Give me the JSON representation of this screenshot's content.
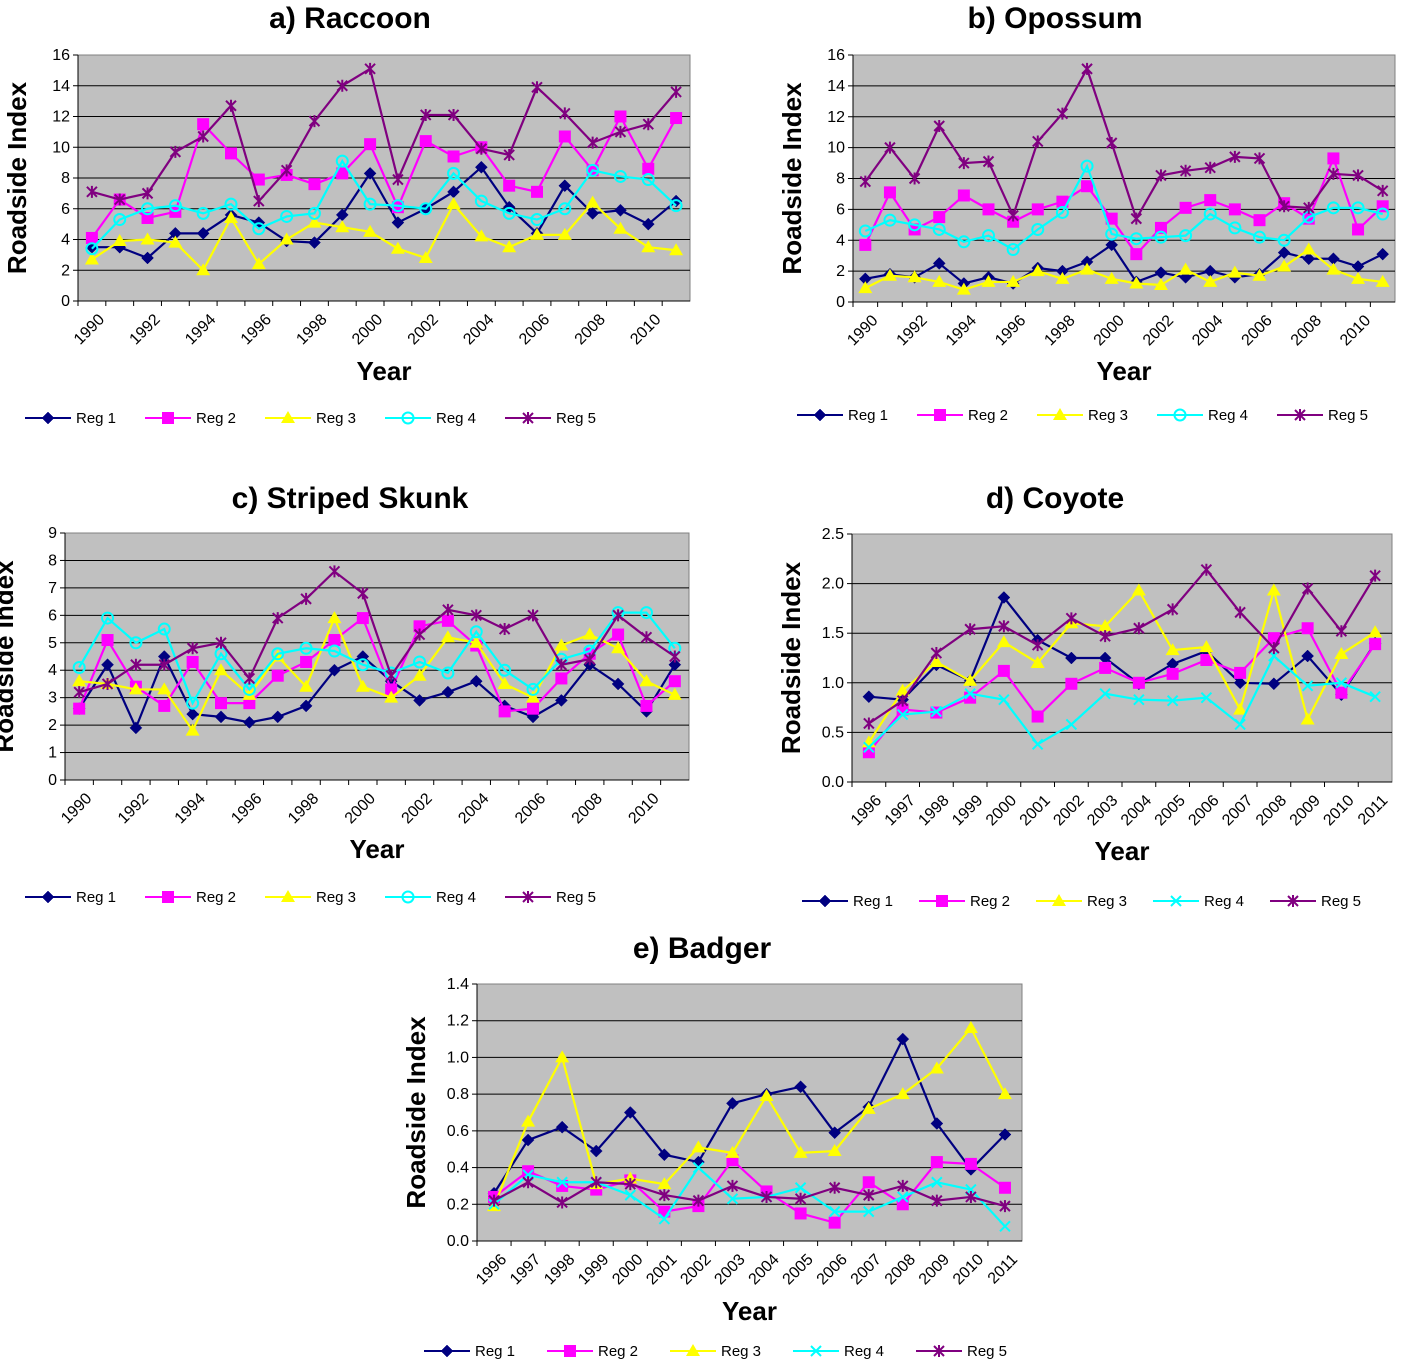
{
  "series_names": [
    "Reg 1",
    "Reg 2",
    "Reg 3",
    "Reg 4",
    "Reg 5"
  ],
  "series_colors": [
    "#000080",
    "#FF00FF",
    "#FFFF00",
    "#00FFFF",
    "#800080"
  ],
  "series_markers": [
    "diamond",
    "square",
    "triangle",
    "circle-or-x",
    "star"
  ],
  "plot_background": "#C0C0C0",
  "chart_data": [
    {
      "type": "line",
      "title": "a) Raccoon",
      "xlabel": "Year",
      "ylabel": "Roadside Index",
      "x": [
        1990,
        1991,
        1992,
        1993,
        1994,
        1995,
        1996,
        1997,
        1998,
        1999,
        2000,
        2001,
        2002,
        2003,
        2004,
        2005,
        2006,
        2007,
        2008,
        2009,
        2010,
        2011
      ],
      "x_tick_labels": [
        "1990",
        "1992",
        "1994",
        "1996",
        "1998",
        "2000",
        "2002",
        "2004",
        "2006",
        "2008",
        "2010"
      ],
      "y_ticks": [
        0,
        2,
        4,
        6,
        8,
        10,
        12,
        14,
        16
      ],
      "ylim": [
        0,
        16
      ],
      "grid": true,
      "legend": "bottom",
      "series": [
        {
          "name": "Reg 1",
          "values": [
            3.5,
            3.5,
            2.8,
            4.4,
            4.4,
            5.6,
            5.1,
            3.9,
            3.8,
            5.6,
            8.3,
            5.1,
            6.0,
            7.1,
            8.7,
            6.1,
            4.4,
            7.5,
            5.7,
            5.9,
            5.0,
            6.5
          ]
        },
        {
          "name": "Reg 2",
          "values": [
            4.1,
            6.6,
            5.4,
            5.8,
            11.5,
            9.6,
            7.9,
            8.2,
            7.6,
            8.3,
            10.2,
            6.1,
            10.4,
            9.4,
            10.0,
            7.5,
            7.1,
            10.7,
            8.5,
            12.0,
            8.6,
            11.9
          ]
        },
        {
          "name": "Reg 3",
          "values": [
            2.7,
            3.9,
            4.0,
            3.8,
            2.0,
            5.4,
            2.4,
            4.0,
            5.1,
            4.8,
            4.5,
            3.4,
            2.8,
            6.3,
            4.2,
            3.5,
            4.3,
            4.3,
            6.4,
            4.7,
            3.5,
            3.3
          ]
        },
        {
          "name": "Reg 4",
          "values": [
            3.4,
            5.3,
            6.0,
            6.2,
            5.7,
            6.3,
            4.7,
            5.5,
            5.7,
            9.1,
            6.3,
            6.2,
            6.0,
            8.3,
            6.5,
            5.7,
            5.3,
            6.0,
            8.5,
            8.1,
            7.9,
            6.2
          ]
        },
        {
          "name": "Reg 5",
          "values": [
            7.1,
            6.6,
            7.0,
            9.7,
            10.7,
            12.7,
            6.5,
            8.5,
            11.7,
            14.0,
            15.1,
            7.9,
            12.1,
            12.1,
            9.9,
            9.5,
            13.9,
            12.2,
            10.3,
            11.0,
            11.5,
            13.6
          ]
        }
      ]
    },
    {
      "type": "line",
      "title": "b) Opossum",
      "xlabel": "Year",
      "ylabel": "Roadside Index",
      "x": [
        1990,
        1991,
        1992,
        1993,
        1994,
        1995,
        1996,
        1997,
        1998,
        1999,
        2000,
        2001,
        2002,
        2003,
        2004,
        2005,
        2006,
        2007,
        2008,
        2009,
        2010,
        2011
      ],
      "x_tick_labels": [
        "1990",
        "1992",
        "1994",
        "1996",
        "1998",
        "2000",
        "2002",
        "2004",
        "2006",
        "2008",
        "2010"
      ],
      "y_ticks": [
        0,
        2,
        4,
        6,
        8,
        10,
        12,
        14,
        16
      ],
      "ylim": [
        0,
        16
      ],
      "grid": true,
      "legend": "bottom",
      "series": [
        {
          "name": "Reg 1",
          "values": [
            1.5,
            1.8,
            1.6,
            2.5,
            1.2,
            1.6,
            1.2,
            2.2,
            2.0,
            2.6,
            3.7,
            1.3,
            1.9,
            1.6,
            2.0,
            1.6,
            1.8,
            3.2,
            2.8,
            2.8,
            2.3,
            3.1
          ]
        },
        {
          "name": "Reg 2",
          "values": [
            3.7,
            7.1,
            4.7,
            5.5,
            6.9,
            6.0,
            5.2,
            6.0,
            6.5,
            7.5,
            5.4,
            3.1,
            4.8,
            6.1,
            6.6,
            6.0,
            5.3,
            6.4,
            5.4,
            9.3,
            4.7,
            6.2
          ]
        },
        {
          "name": "Reg 3",
          "values": [
            0.9,
            1.7,
            1.6,
            1.3,
            0.8,
            1.3,
            1.3,
            2.0,
            1.5,
            2.1,
            1.5,
            1.2,
            1.1,
            2.1,
            1.3,
            1.9,
            1.7,
            2.3,
            3.4,
            2.1,
            1.5,
            1.3
          ]
        },
        {
          "name": "Reg 4",
          "values": [
            4.6,
            5.3,
            5.0,
            4.7,
            3.9,
            4.3,
            3.4,
            4.7,
            5.8,
            8.8,
            4.4,
            4.1,
            4.2,
            4.3,
            5.7,
            4.8,
            4.2,
            4.0,
            5.5,
            6.1,
            6.1,
            5.7
          ]
        },
        {
          "name": "Reg 5",
          "values": [
            7.8,
            10.0,
            8.0,
            11.4,
            9.0,
            9.1,
            5.6,
            10.4,
            12.2,
            15.1,
            10.3,
            5.4,
            8.2,
            8.5,
            8.7,
            9.4,
            9.3,
            6.2,
            6.1,
            8.3,
            8.2,
            7.2
          ]
        }
      ]
    },
    {
      "type": "line",
      "title": "c) Striped Skunk",
      "xlabel": "Year",
      "ylabel": "Roadside Index",
      "x": [
        1990,
        1991,
        1992,
        1993,
        1994,
        1995,
        1996,
        1997,
        1998,
        1999,
        2000,
        2001,
        2002,
        2003,
        2004,
        2005,
        2006,
        2007,
        2008,
        2009,
        2010,
        2011
      ],
      "x_tick_labels": [
        "1990",
        "1992",
        "1994",
        "1996",
        "1998",
        "2000",
        "2002",
        "2004",
        "2006",
        "2008",
        "2010"
      ],
      "y_ticks": [
        0,
        1,
        2,
        3,
        4,
        5,
        6,
        7,
        8,
        9
      ],
      "ylim": [
        0,
        9
      ],
      "grid": true,
      "legend": "bottom",
      "series": [
        {
          "name": "Reg 1",
          "values": [
            2.6,
            4.2,
            1.9,
            4.5,
            2.4,
            2.3,
            2.1,
            2.3,
            2.7,
            4.0,
            4.5,
            3.6,
            2.9,
            3.2,
            3.6,
            2.7,
            2.3,
            2.9,
            4.2,
            3.5,
            2.5,
            4.2
          ]
        },
        {
          "name": "Reg 2",
          "values": [
            2.6,
            5.1,
            3.4,
            2.7,
            4.3,
            2.8,
            2.8,
            3.8,
            4.3,
            5.1,
            5.9,
            3.3,
            5.6,
            5.8,
            4.9,
            2.5,
            2.6,
            3.7,
            4.6,
            5.3,
            2.7,
            3.6
          ]
        },
        {
          "name": "Reg 3",
          "values": [
            3.6,
            3.5,
            3.3,
            3.3,
            1.8,
            4.0,
            3.1,
            4.5,
            3.4,
            5.9,
            3.4,
            3.0,
            3.8,
            5.2,
            5.0,
            3.5,
            3.0,
            4.9,
            5.3,
            4.8,
            3.6,
            3.1
          ]
        },
        {
          "name": "Reg 4",
          "values": [
            4.1,
            5.9,
            5.0,
            5.5,
            2.8,
            4.6,
            3.3,
            4.6,
            4.8,
            4.7,
            4.2,
            3.9,
            4.3,
            3.9,
            5.4,
            4.0,
            3.3,
            4.4,
            4.7,
            6.1,
            6.1,
            4.8
          ]
        },
        {
          "name": "Reg 5",
          "values": [
            3.2,
            3.5,
            4.2,
            4.2,
            4.8,
            5.0,
            3.7,
            5.9,
            6.6,
            7.6,
            6.8,
            3.8,
            5.3,
            6.2,
            6.0,
            5.5,
            6.0,
            4.2,
            4.4,
            6.0,
            5.2,
            4.5
          ]
        }
      ]
    },
    {
      "type": "line",
      "title": "d) Coyote",
      "xlabel": "Year",
      "ylabel": "Roadside Index",
      "x": [
        1996,
        1997,
        1998,
        1999,
        2000,
        2001,
        2002,
        2003,
        2004,
        2005,
        2006,
        2007,
        2008,
        2009,
        2010,
        2011
      ],
      "x_tick_labels": [
        "1996",
        "1997",
        "1998",
        "1999",
        "2000",
        "2001",
        "2002",
        "2003",
        "2004",
        "2005",
        "2006",
        "2007",
        "2008",
        "2009",
        "2010",
        "2011"
      ],
      "y_ticks": [
        "0.0",
        "0.5",
        "1.0",
        "1.5",
        "2.0",
        "2.5"
      ],
      "ylim": [
        0,
        2.5
      ],
      "grid": true,
      "legend": "bottom",
      "series": [
        {
          "name": "Reg 1",
          "values": [
            0.86,
            0.83,
            1.18,
            1.02,
            1.86,
            1.43,
            1.25,
            1.25,
            0.99,
            1.19,
            1.32,
            1.0,
            0.99,
            1.27,
            0.88,
            1.4
          ]
        },
        {
          "name": "Reg 2",
          "values": [
            0.3,
            0.73,
            0.7,
            0.85,
            1.12,
            0.66,
            0.99,
            1.15,
            1.0,
            1.09,
            1.23,
            1.1,
            1.45,
            1.55,
            0.9,
            1.39
          ]
        },
        {
          "name": "Reg 3",
          "values": [
            0.4,
            0.92,
            1.21,
            1.02,
            1.41,
            1.2,
            1.6,
            1.57,
            1.93,
            1.33,
            1.36,
            0.73,
            1.93,
            0.63,
            1.29,
            1.51
          ]
        },
        {
          "name": "Reg 4",
          "values": [
            0.35,
            0.68,
            0.71,
            0.89,
            0.83,
            0.38,
            0.58,
            0.89,
            0.83,
            0.82,
            0.85,
            0.58,
            1.27,
            0.97,
            1.0,
            0.86
          ]
        },
        {
          "name": "Reg 5",
          "values": [
            0.59,
            0.82,
            1.3,
            1.54,
            1.57,
            1.38,
            1.65,
            1.47,
            1.55,
            1.74,
            2.14,
            1.71,
            1.35,
            1.95,
            1.52,
            2.08
          ]
        }
      ]
    },
    {
      "type": "line",
      "title": "e) Badger",
      "xlabel": "Year",
      "ylabel": "Roadside Index",
      "x": [
        1996,
        1997,
        1998,
        1999,
        2000,
        2001,
        2002,
        2003,
        2004,
        2005,
        2006,
        2007,
        2008,
        2009,
        2010,
        2011
      ],
      "x_tick_labels": [
        "1996",
        "1997",
        "1998",
        "1999",
        "2000",
        "2001",
        "2002",
        "2003",
        "2004",
        "2005",
        "2006",
        "2007",
        "2008",
        "2009",
        "2010",
        "2011"
      ],
      "y_ticks": [
        "0.0",
        "0.2",
        "0.4",
        "0.6",
        "0.8",
        "1.0",
        "1.2",
        "1.4"
      ],
      "ylim": [
        0,
        1.4
      ],
      "grid": true,
      "legend": "bottom",
      "series": [
        {
          "name": "Reg 1",
          "values": [
            0.26,
            0.55,
            0.62,
            0.49,
            0.7,
            0.47,
            0.43,
            0.75,
            0.8,
            0.84,
            0.59,
            0.73,
            1.1,
            0.64,
            0.39,
            0.58
          ]
        },
        {
          "name": "Reg 2",
          "values": [
            0.24,
            0.38,
            0.3,
            0.28,
            0.33,
            0.16,
            0.19,
            0.44,
            0.27,
            0.15,
            0.1,
            0.32,
            0.2,
            0.43,
            0.42,
            0.29
          ]
        },
        {
          "name": "Reg 3",
          "values": [
            0.19,
            0.65,
            1.0,
            0.31,
            0.34,
            0.31,
            0.51,
            0.48,
            0.79,
            0.48,
            0.49,
            0.72,
            0.8,
            0.94,
            1.16,
            0.8
          ]
        },
        {
          "name": "Reg 4",
          "values": [
            0.2,
            0.36,
            0.32,
            0.32,
            0.25,
            0.12,
            0.4,
            0.23,
            0.24,
            0.29,
            0.16,
            0.16,
            0.24,
            0.32,
            0.28,
            0.08
          ]
        },
        {
          "name": "Reg 5",
          "values": [
            0.22,
            0.32,
            0.21,
            0.32,
            0.31,
            0.25,
            0.22,
            0.3,
            0.24,
            0.23,
            0.29,
            0.25,
            0.3,
            0.22,
            0.24,
            0.19
          ]
        }
      ]
    }
  ]
}
